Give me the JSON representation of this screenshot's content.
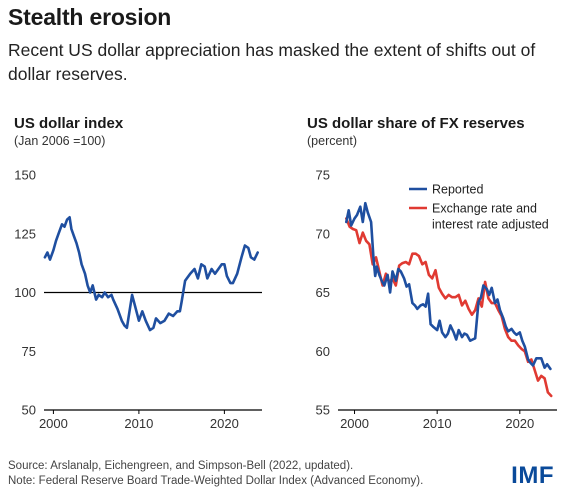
{
  "header": {
    "title": "Stealth erosion",
    "subtitle": "Recent US dollar appreciation has masked the extent of shifts out of dollar reserves."
  },
  "footer": {
    "source": "Source: Arslanalp, Eichengreen, and Simpson-Bell (2022, updated).",
    "note": "Note: Federal Reserve Board Trade-Weighted Dollar Index (Advanced Economy).",
    "logo": "IMF"
  },
  "colors": {
    "blue": "#1f4fa0",
    "red": "#e03a32",
    "axis": "#000000"
  },
  "chart_data": [
    {
      "type": "line",
      "title": "US dollar index",
      "subtitle": "(Jan 2006 =100)",
      "xlabel": "",
      "ylabel": "",
      "xlim": [
        1998.9,
        2024.4
      ],
      "ylim": [
        50,
        150
      ],
      "xticks": [
        2000,
        2010,
        2020
      ],
      "yticks": [
        50,
        75,
        100,
        125,
        150
      ],
      "reference_line": 100,
      "grid": false,
      "series": [
        {
          "name": "",
          "color": "#1f4fa0",
          "x": [
            1999.0,
            1999.3,
            1999.6,
            2000.0,
            2000.3,
            2000.6,
            2001.0,
            2001.3,
            2001.6,
            2001.9,
            2002.1,
            2002.4,
            2002.7,
            2003.0,
            2003.3,
            2003.7,
            2004.0,
            2004.3,
            2004.6,
            2005.0,
            2005.3,
            2005.7,
            2006.0,
            2006.4,
            2006.8,
            2007.0,
            2007.5,
            2008.0,
            2008.3,
            2008.6,
            2008.9,
            2009.2,
            2009.5,
            2010.0,
            2010.4,
            2010.8,
            2011.3,
            2011.7,
            2012.0,
            2012.5,
            2013.0,
            2013.5,
            2014.0,
            2014.5,
            2014.8,
            2015.0,
            2015.4,
            2016.0,
            2016.5,
            2016.9,
            2017.3,
            2017.7,
            2018.0,
            2018.5,
            2018.9,
            2019.3,
            2019.7,
            2020.0,
            2020.3,
            2020.7,
            2021.0,
            2021.5,
            2022.0,
            2022.4,
            2022.8,
            2023.1,
            2023.5,
            2023.9
          ],
          "y": [
            115,
            117,
            114,
            118,
            122,
            125,
            129,
            128,
            131,
            132,
            127,
            124,
            121,
            117,
            112,
            108,
            103,
            100,
            103,
            97,
            99,
            98,
            100,
            98,
            99,
            97,
            93,
            88,
            86,
            85,
            92,
            99,
            95,
            88,
            92,
            88,
            84,
            85,
            89,
            87,
            88,
            91,
            90,
            92,
            92,
            96,
            105,
            108,
            110,
            106,
            112,
            111,
            106,
            110,
            108,
            110,
            112,
            112,
            107,
            104,
            104,
            108,
            115,
            120,
            119,
            115,
            114,
            117
          ]
        }
      ]
    },
    {
      "type": "line",
      "title": "US dollar share of FX reserves",
      "subtitle": "(percent)",
      "xlabel": "",
      "ylabel": "",
      "xlim": [
        1998.0,
        2024.5
      ],
      "ylim": [
        55,
        75
      ],
      "xticks": [
        2000,
        2010,
        2020
      ],
      "yticks": [
        55,
        60,
        65,
        70,
        75
      ],
      "grid": false,
      "legend": "top-right",
      "series": [
        {
          "name": "Reported",
          "color": "#1f4fa0",
          "x": [
            1999.0,
            1999.3,
            1999.6,
            2000.0,
            2000.3,
            2000.7,
            2001.0,
            2001.3,
            2001.6,
            2002.0,
            2002.3,
            2002.5,
            2002.7,
            2003.0,
            2003.3,
            2003.6,
            2004.0,
            2004.3,
            2004.6,
            2005.0,
            2005.3,
            2005.6,
            2006.0,
            2006.3,
            2006.6,
            2007.0,
            2007.3,
            2007.6,
            2008.0,
            2008.3,
            2008.6,
            2008.9,
            2009.2,
            2009.5,
            2010.0,
            2010.3,
            2010.6,
            2011.0,
            2011.3,
            2011.6,
            2012.0,
            2012.3,
            2012.6,
            2013.0,
            2013.3,
            2013.6,
            2014.0,
            2014.3,
            2014.6,
            2015.0,
            2015.3,
            2015.6,
            2016.0,
            2016.3,
            2016.6,
            2017.0,
            2017.3,
            2017.6,
            2018.0,
            2018.3,
            2018.6,
            2019.0,
            2019.3,
            2019.6,
            2020.0,
            2020.3,
            2020.6,
            2021.0,
            2021.3,
            2021.6,
            2022.0,
            2022.3,
            2022.6,
            2023.0,
            2023.3,
            2023.7
          ],
          "y": [
            71.0,
            72.0,
            70.7,
            71.3,
            71.6,
            72.3,
            71.0,
            72.6,
            71.8,
            71.0,
            67.9,
            66.4,
            67.2,
            66.5,
            66.0,
            65.6,
            66.5,
            65.0,
            66.8,
            66.0,
            67.0,
            66.8,
            66.2,
            65.5,
            65.7,
            64.1,
            63.9,
            63.6,
            63.9,
            64.0,
            63.8,
            64.9,
            62.3,
            62.1,
            61.8,
            62.6,
            61.6,
            61.2,
            61.5,
            62.2,
            61.6,
            61.0,
            61.8,
            61.2,
            61.5,
            61.4,
            60.9,
            61.0,
            61.1,
            64.2,
            64.6,
            65.6,
            65.3,
            64.8,
            65.4,
            64.1,
            64.4,
            63.5,
            62.8,
            62.1,
            61.7,
            61.9,
            61.6,
            61.4,
            61.6,
            60.9,
            60.4,
            59.3,
            59.0,
            58.8,
            59.4,
            59.4,
            59.4,
            58.6,
            58.9,
            58.5
          ]
        },
        {
          "name": "Exchange rate and interest rate adjusted",
          "color": "#e03a32",
          "x": [
            1999.0,
            1999.4,
            1999.8,
            2000.2,
            2000.6,
            2001.0,
            2001.4,
            2001.8,
            2002.2,
            2002.6,
            2003.0,
            2003.4,
            2003.8,
            2004.2,
            2004.6,
            2005.0,
            2005.4,
            2005.8,
            2006.2,
            2006.6,
            2007.0,
            2007.4,
            2007.8,
            2008.2,
            2008.6,
            2009.0,
            2009.4,
            2009.8,
            2010.2,
            2010.6,
            2011.0,
            2011.4,
            2011.8,
            2012.2,
            2012.6,
            2013.0,
            2013.4,
            2013.8,
            2014.2,
            2014.6,
            2015.0,
            2015.4,
            2015.8,
            2016.2,
            2016.6,
            2017.0,
            2017.4,
            2017.8,
            2018.2,
            2018.6,
            2019.0,
            2019.4,
            2019.8,
            2020.2,
            2020.6,
            2021.0,
            2021.4,
            2021.8,
            2022.2,
            2022.6,
            2023.0,
            2023.4,
            2023.8
          ],
          "y": [
            71.3,
            70.6,
            70.4,
            70.3,
            69.2,
            70.1,
            69.4,
            69.1,
            67.4,
            68.0,
            66.8,
            65.6,
            66.6,
            65.9,
            66.2,
            65.6,
            67.3,
            67.5,
            67.6,
            67.4,
            68.3,
            68.3,
            68.1,
            67.4,
            67.6,
            66.5,
            66.2,
            66.9,
            65.4,
            64.9,
            64.5,
            64.8,
            64.6,
            64.6,
            64.8,
            63.9,
            64.3,
            63.6,
            63.1,
            63.5,
            64.5,
            63.8,
            65.9,
            64.5,
            64.1,
            64.1,
            63.5,
            63.0,
            61.9,
            61.2,
            60.9,
            60.9,
            60.5,
            60.2,
            60.0,
            59.1,
            59.3,
            58.4,
            57.5,
            57.9,
            57.7,
            56.5,
            56.2
          ]
        }
      ]
    }
  ]
}
